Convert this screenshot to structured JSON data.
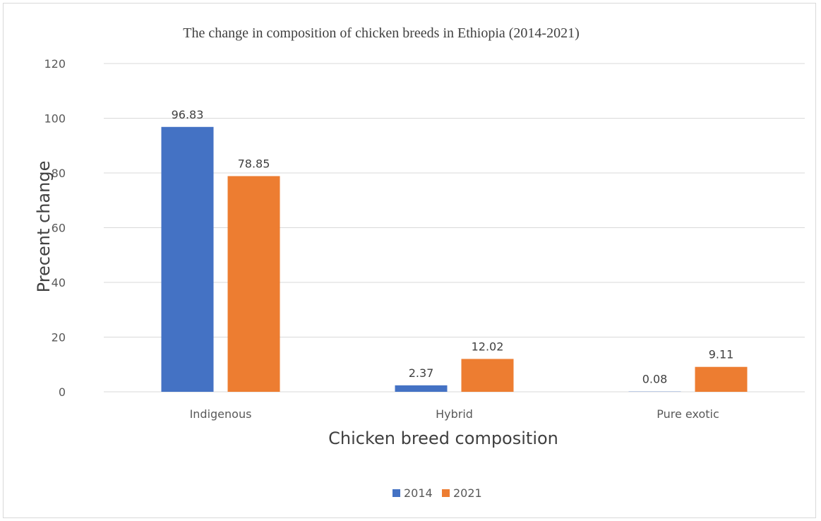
{
  "chart_data": {
    "type": "bar",
    "title": "The change in composition of chicken breeds in Ethiopia (2014-2021)",
    "xlabel": "Chicken breed  composition",
    "ylabel": "Precent change",
    "categories": [
      "Indigenous",
      "Hybrid",
      "Pure exotic"
    ],
    "series": [
      {
        "name": "2014",
        "values": [
          96.83,
          2.37,
          0.08
        ],
        "labels": [
          "96.83",
          "2.37",
          "0.08"
        ],
        "color": "#4472c4"
      },
      {
        "name": "2021",
        "values": [
          78.85,
          12.02,
          9.11
        ],
        "labels": [
          "78.85",
          "12.02",
          "9.11"
        ],
        "color": "#ed7d31"
      }
    ],
    "ylim": [
      0,
      120
    ],
    "yticks": [
      0,
      20,
      40,
      60,
      80,
      100,
      120
    ],
    "grid": true,
    "legend_position": "bottom"
  }
}
